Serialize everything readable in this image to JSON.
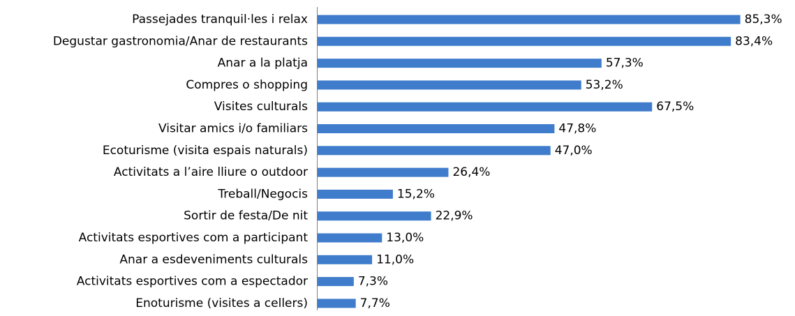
{
  "chart_data": {
    "type": "bar",
    "orientation": "horizontal",
    "categories": [
      "Passejades tranquil·les i relax",
      "Degustar gastronomia/Anar de restaurants",
      "Anar a la platja",
      "Compres o shopping",
      "Visites culturals",
      "Visitar amics i/o familiars",
      "Ecoturisme (visita espais naturals)",
      "Activitats a l’aire lliure o outdoor",
      "Treball/Negocis",
      "Sortir de festa/De nit",
      "Activitats esportives com a participant",
      "Anar a esdeveniments culturals",
      "Activitats esportives com a espectador",
      "Enoturisme (visites a cellers)"
    ],
    "values": [
      85.3,
      83.4,
      57.3,
      53.2,
      67.5,
      47.8,
      47.0,
      26.4,
      15.2,
      22.9,
      13.0,
      11.0,
      7.3,
      7.7
    ],
    "value_labels": [
      "85,3%",
      "83,4%",
      "57,3%",
      "53,2%",
      "67,5%",
      "47,8%",
      "47,0%",
      "26,4%",
      "15,2%",
      "22,9%",
      "13,0%",
      "11,0%",
      "7,3%",
      "7,7%"
    ],
    "color": "#3f7ccc",
    "xlim": [
      0,
      100
    ]
  }
}
